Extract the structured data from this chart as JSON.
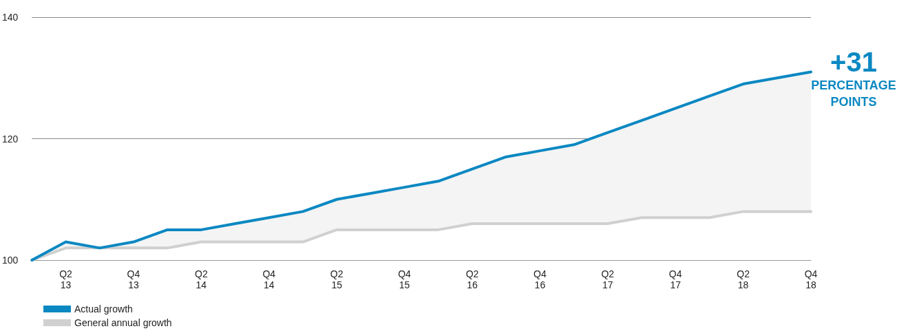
{
  "chart_data": {
    "type": "line",
    "categories": [
      null,
      "Q2\n13",
      null,
      "Q4\n13",
      null,
      "Q2\n14",
      null,
      "Q4\n14",
      null,
      "Q2\n15",
      null,
      "Q4\n15",
      null,
      "Q2\n16",
      null,
      "Q4\n16",
      null,
      "Q2\n17",
      null,
      "Q4\n17",
      null,
      "Q2\n18",
      null,
      "Q4\n18"
    ],
    "series": [
      {
        "name": "Actual growth",
        "color": "#0b88c2",
        "values": [
          100,
          103,
          102,
          103,
          105,
          105,
          106,
          107,
          108,
          110,
          111,
          112,
          113,
          115,
          117,
          118,
          119,
          121,
          123,
          125,
          127,
          129,
          130,
          131
        ],
        "lower": [
          100,
          102,
          102,
          102,
          102,
          103,
          103,
          103,
          103,
          105,
          105,
          105,
          105,
          106,
          106,
          106,
          106,
          106,
          107,
          107,
          107,
          108,
          108,
          108
        ],
        "upper": [
          100,
          103,
          102,
          103,
          105,
          105,
          106,
          107,
          108,
          110,
          111,
          112,
          113,
          115,
          117,
          118,
          119,
          121,
          123,
          125,
          127,
          129,
          130,
          131
        ]
      },
      {
        "name": "General annual growth",
        "color": "#d0d0d0",
        "values": [
          100,
          102,
          102,
          102,
          102,
          103,
          103,
          103,
          103,
          105,
          105,
          105,
          105,
          106,
          106,
          106,
          106,
          106,
          107,
          107,
          107,
          108,
          108,
          108
        ]
      }
    ],
    "ylim": [
      100,
      140
    ],
    "yticks": [
      100,
      120,
      140
    ],
    "grid": "y",
    "legend": "bottom left",
    "marker": "none",
    "line_style": "solid",
    "annotations": [
      "+31",
      "PERCENTAGE\nPOINTS"
    ]
  }
}
